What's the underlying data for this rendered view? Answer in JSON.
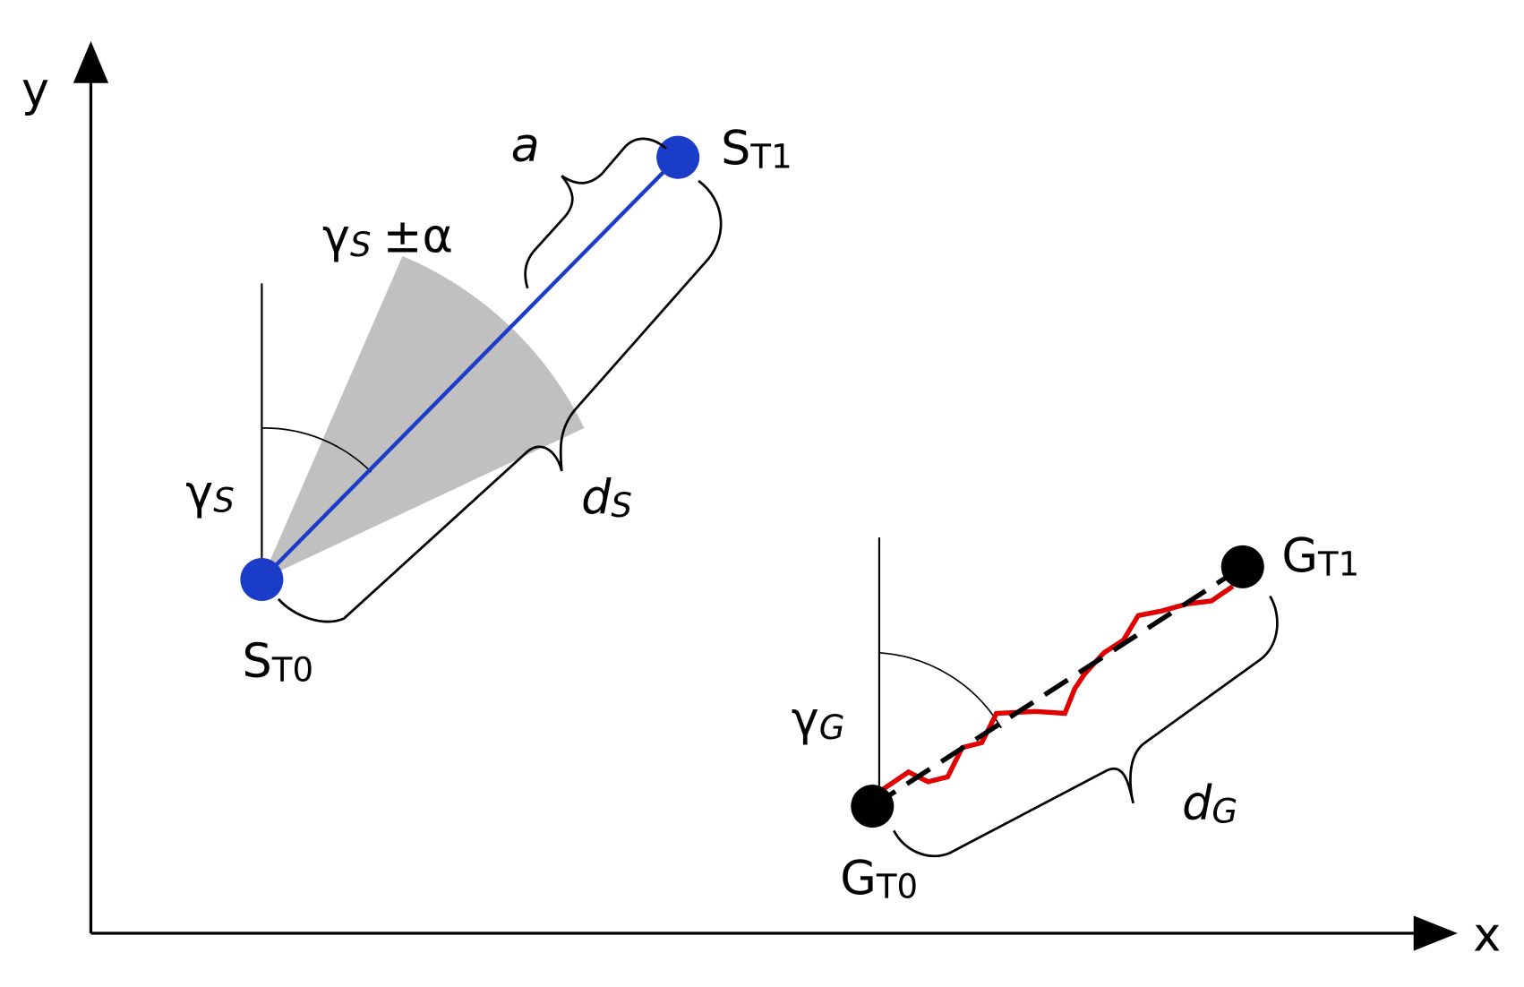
{
  "axes": {
    "x": "x",
    "y": "y"
  },
  "labels": [
    {
      "main": "S",
      "sub": "T1"
    },
    {
      "main": "S",
      "sub": "T0"
    },
    {
      "main": "G",
      "sub": "T1"
    },
    {
      "main": "G",
      "sub": "T0"
    },
    {
      "main": "a"
    },
    {
      "main": "γ",
      "sub": "S",
      "suffix": "±α"
    },
    {
      "main": "γ",
      "sub": "S"
    },
    {
      "main": "d",
      "sub": "S"
    },
    {
      "main": "γ",
      "sub": "G"
    },
    {
      "main": "d",
      "sub": "G"
    }
  ]
}
